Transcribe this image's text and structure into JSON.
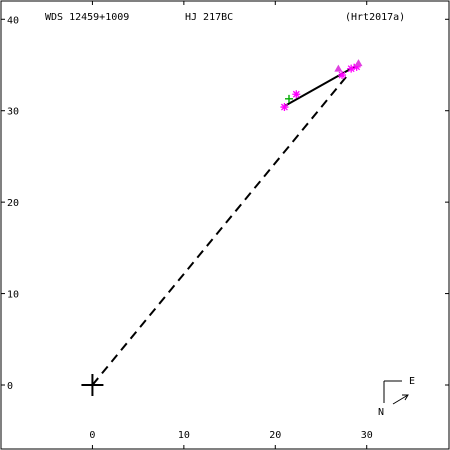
{
  "header": {
    "wds_id": "WDS 12459+1009",
    "pair_name": "HJ  217BC",
    "reference": "(Hrt2017a)"
  },
  "compass": {
    "north_label": "N",
    "east_label": "E"
  },
  "chart_data": {
    "type": "scatter",
    "title": "",
    "xlabel": "",
    "ylabel": "",
    "xlim": [
      -10,
      39
    ],
    "ylim": [
      -7,
      42
    ],
    "x_ticks": [
      0,
      10,
      20,
      30
    ],
    "y_ticks": [
      0,
      10,
      20,
      30,
      40
    ],
    "x_tick_labels": [
      "0",
      "10",
      "20",
      "30"
    ],
    "y_tick_labels": [
      "0",
      "10",
      "20",
      "30",
      "40"
    ],
    "grid": false,
    "primary_star": {
      "x": 0,
      "y": 0
    },
    "orbit_segment": {
      "from": [
        21,
        30.5
      ],
      "to": [
        29,
        35
      ],
      "color": "#000000"
    },
    "primary_to_latest_line": {
      "from": [
        0,
        0
      ],
      "to": [
        28,
        34
      ],
      "style": "dashed"
    },
    "series": [
      {
        "marker": "asterisk",
        "color": "#ff00ff",
        "points": [
          [
            21,
            30.4
          ],
          [
            22.3,
            31.8
          ],
          [
            27.3,
            33.9
          ],
          [
            28.3,
            34.6
          ],
          [
            28.9,
            34.8
          ]
        ]
      },
      {
        "marker": "triangle",
        "color": "#e040e0",
        "points": [
          [
            26.9,
            34.6
          ],
          [
            29.1,
            35.2
          ]
        ]
      },
      {
        "marker": "plus",
        "color": "#00aa00",
        "points": [
          [
            21.5,
            31.3
          ]
        ]
      }
    ]
  }
}
